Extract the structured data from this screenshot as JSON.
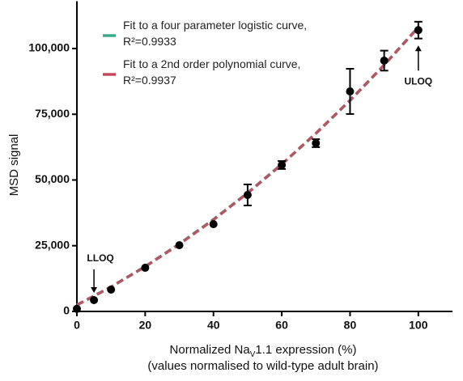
{
  "chart_data": {
    "type": "scatter",
    "y_label": "MSD signal",
    "x_label": [
      "Normalized Na",
      "V",
      "1.1 expression (%)"
    ],
    "x_label_note": "(values normalised to wild-type adult brain)",
    "xlim": [
      0,
      110
    ],
    "ylim": [
      0,
      118000
    ],
    "xticks": [
      0,
      20,
      40,
      60,
      80,
      100
    ],
    "yticks": [
      0,
      {
        "value": 25000,
        "label": "25,000"
      },
      {
        "value": 50000,
        "label": "50,000"
      },
      {
        "value": 75000,
        "label": "75,000"
      },
      {
        "value": 100000,
        "label": "100,000"
      }
    ],
    "points": {
      "color": "#000000",
      "x": [
        0,
        5,
        10,
        20,
        30,
        40,
        50,
        60,
        70,
        80,
        90,
        100
      ],
      "values": [
        1000,
        4300,
        8300,
        16600,
        25200,
        33200,
        44300,
        55700,
        64000,
        83700,
        95400,
        107000
      ],
      "errors": [
        null,
        null,
        null,
        null,
        null,
        null,
        4000,
        1500,
        1500,
        8600,
        3800,
        3200
      ]
    },
    "series": [
      {
        "name": "Fit to a four parameter logistic curve,",
        "note": "R²=0.9933",
        "color": "#3aab8c",
        "x": [
          0,
          10,
          20,
          30,
          40,
          50,
          60,
          70,
          80,
          90,
          100
        ],
        "values": [
          2400,
          9300,
          17100,
          25700,
          35000,
          45100,
          56000,
          67700,
          80200,
          93700,
          108200
        ]
      },
      {
        "name": "Fit to a 2nd order polynomial curve,",
        "note": "R²=0.9937",
        "color": "#c8475c",
        "x": [
          0,
          10,
          20,
          30,
          40,
          50,
          60,
          70,
          80,
          90,
          100
        ],
        "values": [
          2500,
          9360,
          17040,
          25540,
          34860,
          45000,
          55960,
          67740,
          80340,
          93760,
          108000
        ]
      }
    ],
    "annotations": [
      {
        "text": "LLOQ",
        "x": 5,
        "position": "above"
      },
      {
        "text": "ULOQ",
        "x": 100,
        "position": "below"
      }
    ]
  }
}
